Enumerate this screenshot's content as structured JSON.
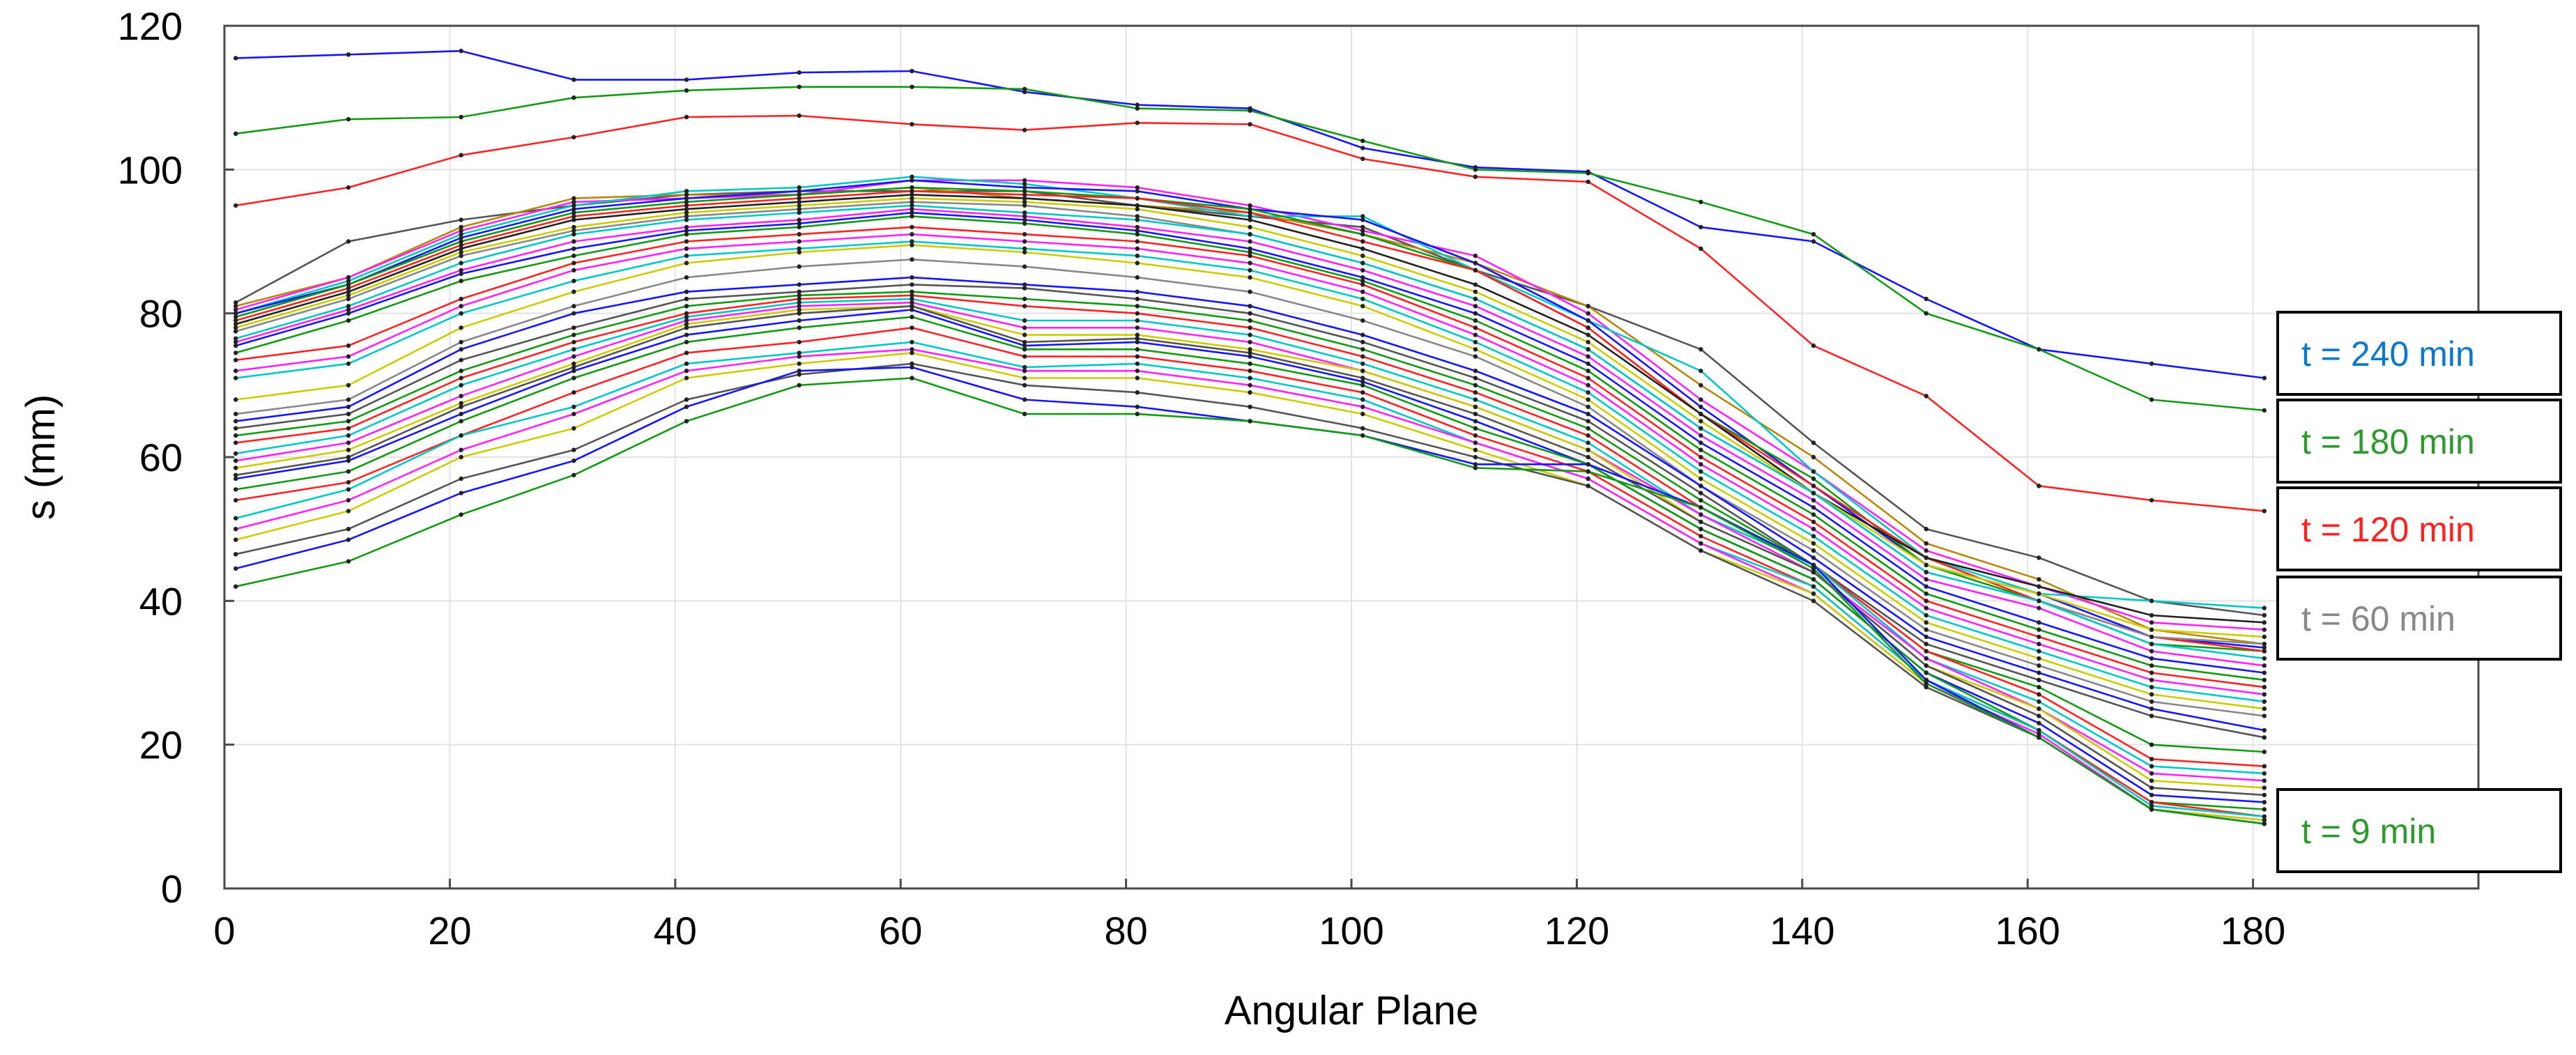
{
  "chart_data": {
    "type": "line",
    "title": "",
    "xlabel": "Angular Plane",
    "ylabel": "s (mm)",
    "xlim": [
      0,
      200
    ],
    "ylim": [
      0,
      120
    ],
    "xticks": [
      0,
      20,
      40,
      60,
      80,
      100,
      120,
      140,
      160,
      180
    ],
    "yticks": [
      0,
      20,
      40,
      60,
      80,
      100,
      120
    ],
    "grid": true,
    "legend_position": "right",
    "x": [
      1,
      11,
      21,
      31,
      41,
      51,
      61,
      71,
      81,
      91,
      101,
      111,
      121,
      131,
      141,
      151,
      161,
      171,
      181
    ],
    "series": [
      {
        "name": "t = 240 min",
        "color": "#1515ff",
        "values": [
          115.5,
          116,
          116.5,
          112.5,
          112.5,
          113.5,
          113.7,
          110.8,
          109,
          108.5,
          103,
          100.3,
          99.7,
          92,
          90,
          82,
          75,
          73,
          71
        ]
      },
      {
        "name": "t = 180 min",
        "color": "#139a13",
        "values": [
          105,
          107,
          107.3,
          110,
          111,
          111.5,
          111.5,
          111.2,
          108.5,
          108.2,
          104,
          100,
          99.5,
          95.5,
          91,
          80,
          75,
          68,
          66.5
        ]
      },
      {
        "name": "t = 120 min",
        "color": "#ff2222",
        "values": [
          95,
          97.5,
          102,
          104.5,
          107.3,
          107.5,
          106.3,
          105.5,
          106.5,
          106.3,
          101.5,
          99,
          98.3,
          89,
          75.5,
          68.5,
          56,
          54,
          52.5
        ]
      },
      {
        "name": "",
        "color": "#555555",
        "values": [
          81.5,
          90,
          93,
          95,
          96.5,
          97,
          97,
          97,
          95,
          93.5,
          92,
          86,
          81,
          75,
          62,
          50,
          46,
          40,
          38
        ]
      },
      {
        "name": "",
        "color": "#b8860b",
        "values": [
          81,
          85,
          92,
          96,
          96.5,
          96.5,
          97.5,
          96,
          95,
          94,
          91,
          87,
          81,
          70,
          60,
          48,
          43,
          36,
          34
        ]
      },
      {
        "name": "",
        "color": "#ff22ff",
        "values": [
          80.5,
          85,
          91.5,
          95.5,
          96,
          96.5,
          98.5,
          98.5,
          97.5,
          95,
          91.5,
          88,
          80,
          68,
          58,
          47,
          42,
          37,
          36
        ]
      },
      {
        "name": "",
        "color": "#00c8c8",
        "values": [
          80,
          84.5,
          91,
          95,
          97,
          97.5,
          99,
          98,
          96,
          93.5,
          93.5,
          86,
          79,
          72,
          58,
          46,
          41,
          40,
          39
        ]
      },
      {
        "name": "",
        "color": "#1515ff",
        "values": [
          80,
          84,
          90.5,
          94.5,
          96,
          97,
          98.5,
          97.5,
          97,
          94.5,
          93,
          87,
          79,
          67,
          56,
          45,
          41,
          35,
          33.5
        ]
      },
      {
        "name": "",
        "color": "#139a13",
        "values": [
          79.5,
          84,
          90,
          94,
          95.5,
          96.5,
          97.5,
          97,
          96,
          94.5,
          91,
          86,
          78,
          66,
          57,
          45,
          40,
          34,
          33
        ]
      },
      {
        "name": "",
        "color": "#ff2222",
        "values": [
          79,
          83.5,
          89.5,
          93.5,
          95,
          96,
          97,
          96.5,
          96,
          94,
          90,
          86,
          78,
          66,
          56,
          46,
          40,
          35,
          33
        ]
      },
      {
        "name": "",
        "color": "#222222",
        "values": [
          78.5,
          83,
          89,
          93,
          94.5,
          95.5,
          96.5,
          96,
          95,
          93,
          89,
          84,
          77,
          66,
          55,
          46,
          42,
          38,
          37
        ]
      },
      {
        "name": "",
        "color": "#cccc00",
        "values": [
          78,
          82.5,
          88.5,
          92,
          94,
          95,
          96,
          95.5,
          94.5,
          92,
          88,
          83,
          76,
          65,
          55,
          45,
          41,
          36,
          35
        ]
      },
      {
        "name": "",
        "color": "#888888",
        "values": [
          77.5,
          82,
          88,
          91.5,
          93.5,
          94.5,
          95.5,
          95,
          93.5,
          91,
          87,
          82,
          75,
          64,
          55,
          44,
          40,
          35,
          34
        ]
      },
      {
        "name": "",
        "color": "#00c8c8",
        "values": [
          76.5,
          81,
          87,
          91,
          93,
          94,
          95,
          94,
          93,
          91,
          87,
          82,
          75,
          64,
          55,
          44,
          40,
          34,
          32
        ]
      },
      {
        "name": "",
        "color": "#ff22ff",
        "values": [
          76,
          80.5,
          86,
          90,
          92,
          93,
          94.5,
          93.5,
          92,
          90,
          86,
          81,
          74,
          63,
          54,
          43,
          39,
          33,
          31
        ]
      },
      {
        "name": "",
        "color": "#1515ff",
        "values": [
          75.5,
          80,
          85.5,
          89,
          91.5,
          92.5,
          94,
          93,
          91.5,
          89,
          85,
          80,
          73,
          62,
          53,
          42,
          37,
          32,
          30
        ]
      },
      {
        "name": "",
        "color": "#139a13",
        "values": [
          74.5,
          79,
          84.5,
          88,
          91,
          92,
          93.5,
          92.5,
          91,
          88.5,
          84.5,
          79,
          72,
          61,
          52,
          41,
          36,
          31,
          29
        ]
      },
      {
        "name": "",
        "color": "#ff2222",
        "values": [
          73.5,
          75.5,
          82,
          87,
          90,
          91,
          92,
          91,
          90,
          88,
          84,
          78,
          71,
          60,
          51,
          40,
          35,
          30,
          28
        ]
      },
      {
        "name": "",
        "color": "#ff22ff",
        "values": [
          72,
          74,
          81,
          86,
          89,
          90,
          91,
          90,
          89,
          87,
          83,
          77,
          70,
          59,
          50,
          39,
          34,
          29,
          27
        ]
      },
      {
        "name": "",
        "color": "#00c8c8",
        "values": [
          71,
          73,
          80,
          84.5,
          88,
          89,
          90,
          89,
          88,
          86,
          82,
          76,
          69,
          58,
          49,
          38,
          33,
          28,
          26
        ]
      },
      {
        "name": "",
        "color": "#cccc00",
        "values": [
          68,
          70,
          78,
          83,
          87,
          88.5,
          89.5,
          88.5,
          87,
          85,
          81,
          75,
          68,
          57,
          48,
          37,
          32,
          27,
          25
        ]
      },
      {
        "name": "",
        "color": "#888888",
        "values": [
          66,
          68,
          76,
          81,
          85,
          86.5,
          87.5,
          86.5,
          85,
          83,
          79,
          74,
          67,
          56,
          47,
          36,
          31,
          26,
          24
        ]
      },
      {
        "name": "",
        "color": "#1515ff",
        "values": [
          65,
          67,
          75,
          80,
          83,
          84,
          85,
          84,
          83,
          81,
          77,
          72,
          66,
          56,
          46,
          35,
          30,
          25,
          22
        ]
      },
      {
        "name": "",
        "color": "#555555",
        "values": [
          64,
          66,
          73.5,
          78,
          82,
          83,
          84,
          83.5,
          82,
          80,
          76,
          71,
          65,
          55,
          45,
          34,
          29,
          24,
          21
        ]
      },
      {
        "name": "",
        "color": "#139a13",
        "values": [
          63,
          65,
          72,
          77,
          81,
          82.5,
          83,
          82,
          81,
          79,
          75,
          70,
          64,
          54,
          45,
          33,
          28,
          20,
          19
        ]
      },
      {
        "name": "",
        "color": "#ff2222",
        "values": [
          62,
          64,
          71,
          76,
          80,
          82,
          82.5,
          81,
          80,
          78,
          74,
          69,
          63,
          53,
          45,
          33,
          27,
          18,
          17
        ]
      },
      {
        "name": "",
        "color": "#00c8c8",
        "values": [
          60.5,
          63,
          70,
          75,
          79.5,
          81.5,
          82,
          79,
          79,
          77,
          73,
          68,
          62,
          52,
          45,
          32,
          26,
          17,
          16
        ]
      },
      {
        "name": "",
        "color": "#ff22ff",
        "values": [
          59.5,
          62,
          68.5,
          74,
          79,
          81,
          81.5,
          78,
          78,
          76,
          72,
          67,
          61,
          52,
          44,
          32,
          25,
          16,
          15
        ]
      },
      {
        "name": "",
        "color": "#cccc00",
        "values": [
          58.5,
          61,
          67.5,
          73,
          78.5,
          80.5,
          81,
          77,
          77,
          75,
          72,
          67,
          61,
          51,
          44,
          31,
          25,
          15,
          14
        ]
      },
      {
        "name": "",
        "color": "#555555",
        "values": [
          57.5,
          60,
          67,
          72.5,
          78,
          80,
          81,
          76,
          76.5,
          74.5,
          71,
          66,
          60,
          51,
          44,
          31,
          24,
          14,
          13
        ]
      },
      {
        "name": "",
        "color": "#1515ff",
        "values": [
          57,
          59.5,
          66,
          72,
          77,
          79,
          80.5,
          75.5,
          76,
          74,
          70.5,
          65,
          59,
          50,
          43,
          30,
          23,
          13,
          12
        ]
      },
      {
        "name": "",
        "color": "#139a13",
        "values": [
          55.5,
          58,
          65,
          71,
          76,
          78,
          79.5,
          75,
          75,
          73,
          70,
          64,
          59,
          50,
          43,
          30,
          22,
          12,
          11
        ]
      },
      {
        "name": "",
        "color": "#ff2222",
        "values": [
          54,
          56.5,
          63,
          69,
          74.5,
          76,
          78,
          74,
          74,
          72,
          69,
          63,
          58,
          49,
          42,
          29,
          22,
          12,
          10
        ]
      },
      {
        "name": "",
        "color": "#00c8c8",
        "values": [
          51.5,
          55.5,
          63,
          67,
          73,
          74.5,
          76,
          72.5,
          73,
          71,
          68,
          62,
          57,
          48,
          42,
          29,
          22,
          11.5,
          10
        ]
      },
      {
        "name": "",
        "color": "#ff22ff",
        "values": [
          50,
          54,
          61,
          66,
          72,
          74,
          75,
          72,
          72,
          70,
          67,
          62,
          57,
          48,
          41,
          28.5,
          21.5,
          11,
          9.5
        ]
      },
      {
        "name": "",
        "color": "#cccc00",
        "values": [
          48.5,
          52.5,
          60,
          64,
          71,
          73,
          74.5,
          71,
          71,
          69,
          66,
          61,
          56,
          47,
          41,
          28.5,
          21,
          11,
          9.5
        ]
      },
      {
        "name": "",
        "color": "#555555",
        "values": [
          46.5,
          50,
          57,
          61,
          68,
          71.5,
          73,
          70,
          69,
          67,
          64,
          60,
          56,
          47,
          40,
          28,
          21,
          11,
          9
        ]
      },
      {
        "name": "",
        "color": "#1515ff",
        "values": [
          44.5,
          48.5,
          55,
          59.5,
          67,
          72,
          72.5,
          68,
          67,
          65,
          63,
          59,
          59,
          53,
          45,
          29,
          21,
          11,
          9
        ]
      },
      {
        "name": "t = 9 min",
        "color": "#139a13",
        "values": [
          42,
          45.5,
          52,
          57.5,
          65,
          70,
          71,
          66,
          66,
          65,
          63,
          58.5,
          58,
          53,
          44.5,
          28.5,
          21,
          11,
          9
        ]
      }
    ],
    "legend": [
      {
        "label": "t = 240 min",
        "color": "#0b78d0"
      },
      {
        "label": "t = 180 min",
        "color": "#2e9a2e"
      },
      {
        "label": "t = 120 min",
        "color": "#ff2020"
      },
      {
        "label": "t = 60 min",
        "color": "#888888"
      },
      {
        "label": "t = 9 min",
        "color": "#2e9a2e"
      }
    ]
  }
}
